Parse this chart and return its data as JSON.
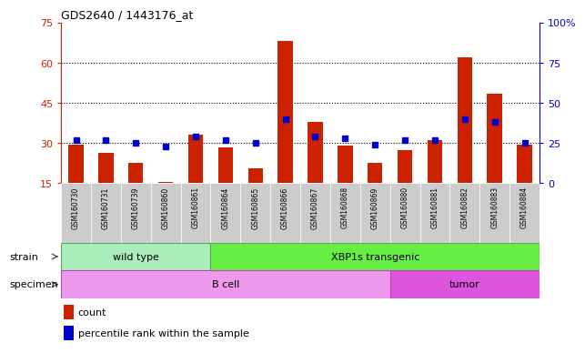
{
  "title": "GDS2640 / 1443176_at",
  "samples": [
    "GSM160730",
    "GSM160731",
    "GSM160739",
    "GSM160860",
    "GSM160861",
    "GSM160864",
    "GSM160865",
    "GSM160866",
    "GSM160867",
    "GSM160868",
    "GSM160869",
    "GSM160880",
    "GSM160881",
    "GSM160882",
    "GSM160883",
    "GSM160884"
  ],
  "count_values": [
    29.5,
    26.5,
    22.5,
    15.5,
    33.0,
    28.5,
    20.5,
    68.0,
    38.0,
    29.0,
    22.5,
    27.5,
    31.0,
    62.0,
    48.5,
    29.5
  ],
  "percentile_values": [
    27,
    27,
    25,
    23,
    29,
    27,
    25,
    40,
    29,
    28,
    24,
    27,
    27,
    40,
    38,
    25
  ],
  "count_left_scale_ticks": [
    15,
    30,
    45,
    60,
    75
  ],
  "percentile_right_scale_ticks": [
    0,
    25,
    50,
    75,
    100
  ],
  "ylim_left": [
    15,
    75
  ],
  "ylim_right": [
    0,
    100
  ],
  "bar_color": "#cc2200",
  "dot_color": "#0000cc",
  "strain_wild_type_count": 5,
  "strain_xbp1s_count": 11,
  "specimen_bcell_count": 11,
  "specimen_tumor_count": 5,
  "wild_type_label": "wild type",
  "xbp1s_label": "XBP1s transgenic",
  "bcell_label": "B cell",
  "tumor_label": "tumor",
  "strain_label": "strain",
  "specimen_label": "specimen",
  "legend_count_label": "count",
  "legend_percentile_label": "percentile rank within the sample",
  "wild_type_color": "#aaeebb",
  "xbp1s_color": "#66ee44",
  "bcell_color": "#ee99ee",
  "tumor_color": "#dd55dd",
  "bg_color": "#ffffff",
  "axis_color_left": "#cc2200",
  "axis_color_right": "#0000cc",
  "tick_label_bg": "#cccccc",
  "gridline_color": "#000000",
  "gridline_values": [
    30,
    45,
    60
  ]
}
